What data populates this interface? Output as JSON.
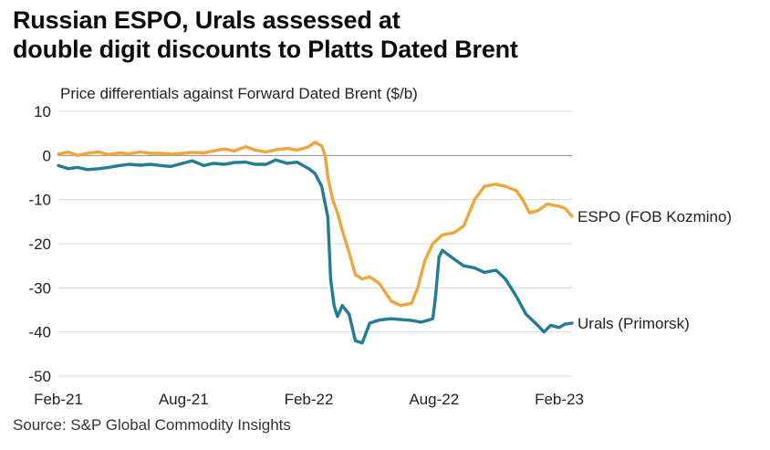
{
  "title": {
    "line1": "Russian ESPO, Urals assessed at",
    "line2": "double digit discounts to Platts Dated Brent"
  },
  "source": "Source: S&P Global Commodity Insights",
  "chart_data": {
    "type": "line",
    "ylabel": "Price differentials against Forward Dated Brent ($/b)",
    "ylim": [
      -50,
      10
    ],
    "y_ticks": [
      "10",
      "0",
      "-10",
      "-20",
      "-30",
      "-40",
      "-50"
    ],
    "x_ticks": [
      "Feb-21",
      "Aug-21",
      "Feb-22",
      "Aug-22",
      "Feb-23"
    ],
    "xlim": [
      "2021-02-01",
      "2023-02-20"
    ],
    "grid": "horizontal",
    "series": [
      {
        "name": "ESPO (FOB Kozmino)",
        "color": "#f0a53c",
        "points": [
          [
            "2021-02-01",
            0.3
          ],
          [
            "2021-02-15",
            0.8
          ],
          [
            "2021-03-01",
            0.0
          ],
          [
            "2021-03-15",
            0.5
          ],
          [
            "2021-04-01",
            0.8
          ],
          [
            "2021-04-15",
            0.2
          ],
          [
            "2021-05-01",
            0.6
          ],
          [
            "2021-05-15",
            0.4
          ],
          [
            "2021-06-01",
            0.8
          ],
          [
            "2021-06-15",
            0.5
          ],
          [
            "2021-07-01",
            0.5
          ],
          [
            "2021-07-15",
            0.3
          ],
          [
            "2021-08-01",
            0.5
          ],
          [
            "2021-08-15",
            0.7
          ],
          [
            "2021-09-01",
            0.6
          ],
          [
            "2021-09-15",
            1.0
          ],
          [
            "2021-10-01",
            1.5
          ],
          [
            "2021-10-15",
            1.0
          ],
          [
            "2021-11-01",
            2.0
          ],
          [
            "2021-11-15",
            1.2
          ],
          [
            "2021-12-01",
            0.8
          ],
          [
            "2021-12-15",
            1.3
          ],
          [
            "2022-01-01",
            1.6
          ],
          [
            "2022-01-15",
            1.2
          ],
          [
            "2022-02-01",
            2.0
          ],
          [
            "2022-02-10",
            3.0
          ],
          [
            "2022-02-20",
            2.2
          ],
          [
            "2022-02-25",
            0.0
          ],
          [
            "2022-03-01",
            -5.0
          ],
          [
            "2022-03-08",
            -10.0
          ],
          [
            "2022-03-15",
            -13.0
          ],
          [
            "2022-03-22",
            -17.0
          ],
          [
            "2022-04-01",
            -22.0
          ],
          [
            "2022-04-10",
            -27.0
          ],
          [
            "2022-04-20",
            -28.0
          ],
          [
            "2022-05-01",
            -27.5
          ],
          [
            "2022-05-15",
            -29.0
          ],
          [
            "2022-06-01",
            -33.0
          ],
          [
            "2022-06-15",
            -34.0
          ],
          [
            "2022-07-01",
            -33.5
          ],
          [
            "2022-07-10",
            -30.0
          ],
          [
            "2022-07-20",
            -24.0
          ],
          [
            "2022-08-01",
            -20.0
          ],
          [
            "2022-08-15",
            -18.0
          ],
          [
            "2022-09-01",
            -17.5
          ],
          [
            "2022-09-15",
            -16.0
          ],
          [
            "2022-10-01",
            -10.0
          ],
          [
            "2022-10-15",
            -7.0
          ],
          [
            "2022-11-01",
            -6.5
          ],
          [
            "2022-11-15",
            -7.0
          ],
          [
            "2022-12-01",
            -8.0
          ],
          [
            "2022-12-10",
            -10.0
          ],
          [
            "2022-12-20",
            -13.0
          ],
          [
            "2023-01-01",
            -12.5
          ],
          [
            "2023-01-15",
            -11.0
          ],
          [
            "2023-02-01",
            -11.5
          ],
          [
            "2023-02-10",
            -12.0
          ],
          [
            "2023-02-20",
            -13.8
          ]
        ]
      },
      {
        "name": "Urals (Primorsk)",
        "color": "#237b94",
        "points": [
          [
            "2021-02-01",
            -2.3
          ],
          [
            "2021-02-15",
            -3.0
          ],
          [
            "2021-03-01",
            -2.7
          ],
          [
            "2021-03-15",
            -3.2
          ],
          [
            "2021-04-01",
            -3.0
          ],
          [
            "2021-04-15",
            -2.7
          ],
          [
            "2021-05-01",
            -2.3
          ],
          [
            "2021-05-15",
            -2.0
          ],
          [
            "2021-06-01",
            -2.2
          ],
          [
            "2021-06-15",
            -2.0
          ],
          [
            "2021-07-01",
            -2.3
          ],
          [
            "2021-07-15",
            -2.5
          ],
          [
            "2021-08-01",
            -1.8
          ],
          [
            "2021-08-15",
            -1.2
          ],
          [
            "2021-09-01",
            -2.3
          ],
          [
            "2021-09-15",
            -1.8
          ],
          [
            "2021-10-01",
            -2.0
          ],
          [
            "2021-10-15",
            -1.6
          ],
          [
            "2021-11-01",
            -1.5
          ],
          [
            "2021-11-15",
            -2.0
          ],
          [
            "2021-12-01",
            -2.0
          ],
          [
            "2021-12-15",
            -1.0
          ],
          [
            "2022-01-01",
            -1.8
          ],
          [
            "2022-01-15",
            -1.5
          ],
          [
            "2022-02-01",
            -3.0
          ],
          [
            "2022-02-10",
            -4.0
          ],
          [
            "2022-02-20",
            -7.0
          ],
          [
            "2022-03-01",
            -14.0
          ],
          [
            "2022-03-05",
            -28.0
          ],
          [
            "2022-03-10",
            -34.0
          ],
          [
            "2022-03-15",
            -36.5
          ],
          [
            "2022-03-22",
            -34.0
          ],
          [
            "2022-04-01",
            -36.0
          ],
          [
            "2022-04-10",
            -42.0
          ],
          [
            "2022-04-20",
            -42.5
          ],
          [
            "2022-05-01",
            -38.0
          ],
          [
            "2022-05-15",
            -37.3
          ],
          [
            "2022-06-01",
            -37.0
          ],
          [
            "2022-06-15",
            -37.2
          ],
          [
            "2022-07-01",
            -37.4
          ],
          [
            "2022-07-15",
            -37.8
          ],
          [
            "2022-08-01",
            -37.0
          ],
          [
            "2022-08-05",
            -32.0
          ],
          [
            "2022-08-10",
            -23.0
          ],
          [
            "2022-08-15",
            -21.5
          ],
          [
            "2022-09-01",
            -23.5
          ],
          [
            "2022-09-15",
            -25.0
          ],
          [
            "2022-10-01",
            -25.5
          ],
          [
            "2022-10-15",
            -26.5
          ],
          [
            "2022-11-01",
            -26.0
          ],
          [
            "2022-11-15",
            -28.0
          ],
          [
            "2022-12-01",
            -32.0
          ],
          [
            "2022-12-15",
            -36.0
          ],
          [
            "2023-01-01",
            -38.5
          ],
          [
            "2023-01-10",
            -40.0
          ],
          [
            "2023-01-20",
            -38.5
          ],
          [
            "2023-02-01",
            -39.0
          ],
          [
            "2023-02-10",
            -38.2
          ],
          [
            "2023-02-20",
            -38.0
          ]
        ]
      }
    ]
  }
}
